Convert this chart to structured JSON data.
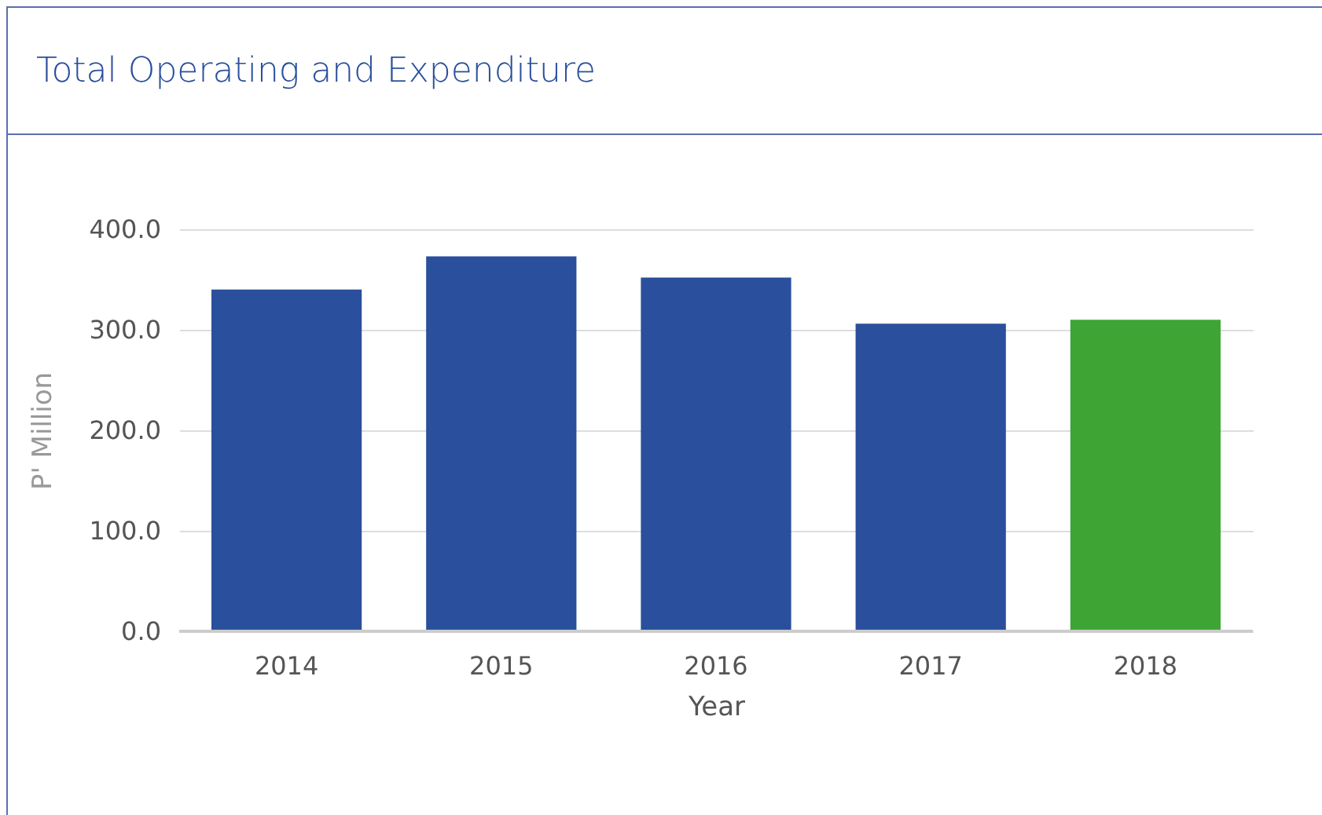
{
  "chart_data": {
    "type": "bar",
    "title": "Total Operating and Expenditure",
    "xlabel": "Year",
    "ylabel": "P' Million",
    "categories": [
      "2014",
      "2015",
      "2016",
      "2017",
      "2018"
    ],
    "values": [
      340,
      373,
      352,
      306,
      310
    ],
    "colors": [
      "#2a4f9c",
      "#2a4f9c",
      "#2a4f9c",
      "#2a4f9c",
      "#3ea535"
    ],
    "ylim": [
      0,
      400
    ],
    "yticks": [
      {
        "value": 0,
        "label": "0.0"
      },
      {
        "value": 100,
        "label": "100.0"
      },
      {
        "value": 200,
        "label": "200.0"
      },
      {
        "value": 300,
        "label": "300.0"
      },
      {
        "value": 400,
        "label": "400.0"
      }
    ],
    "grid": "y"
  }
}
